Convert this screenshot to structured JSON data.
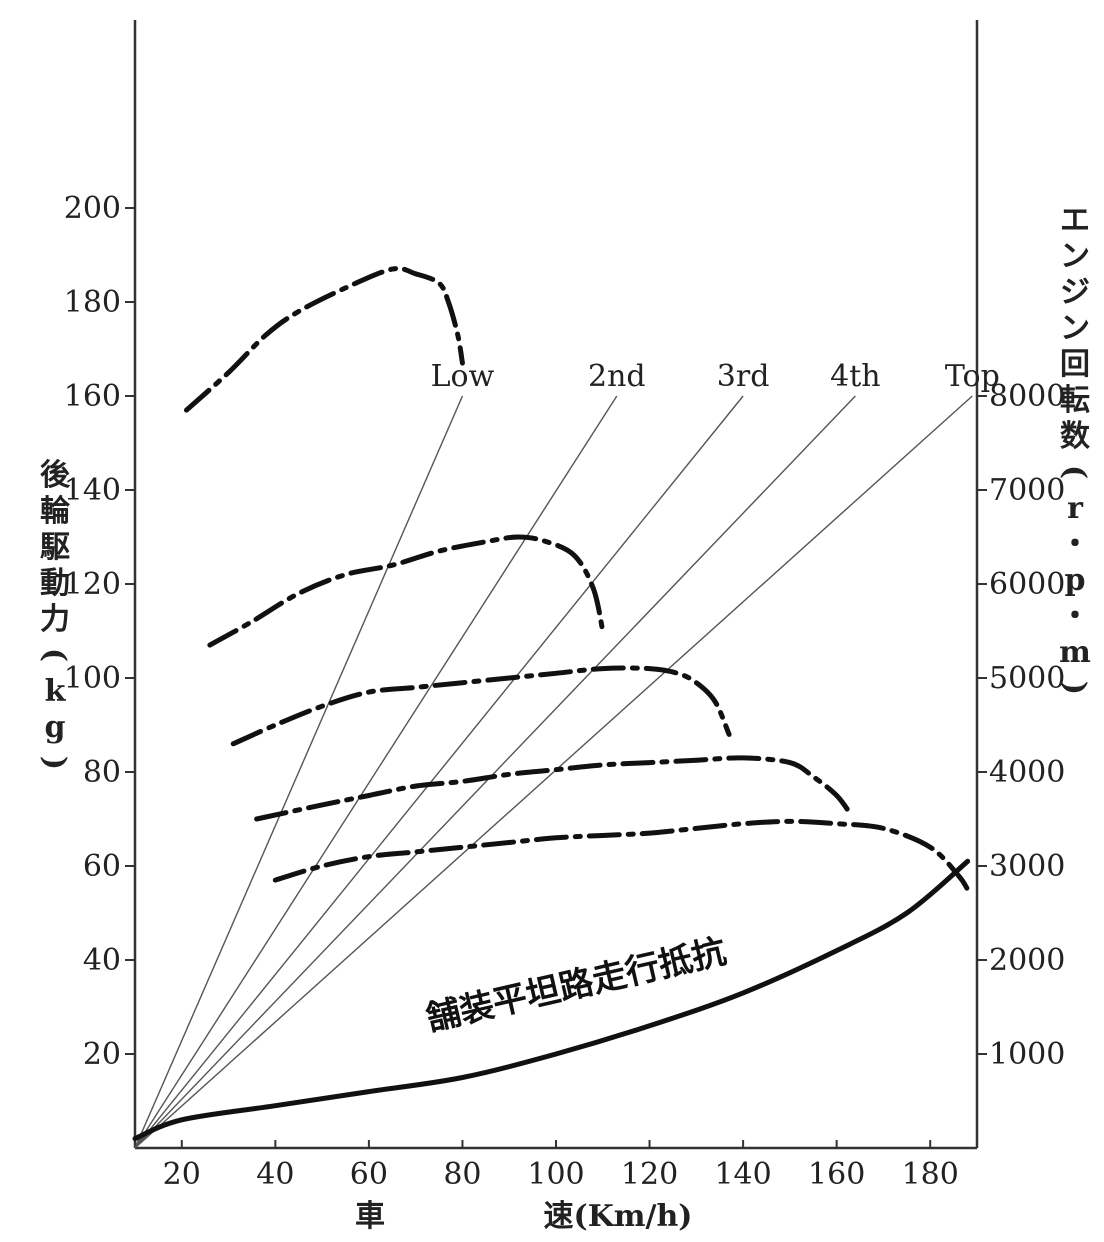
{
  "chart_data": {
    "type": "line",
    "xlabel_chars": [
      "車",
      "速(Km/h)"
    ],
    "ylabel_left": "後輪駆動力(kg)",
    "ylabel_right": "エンジン回転数(r・p・m)",
    "xlim": [
      10,
      190
    ],
    "ylim_left": [
      0,
      240
    ],
    "ylim_right": [
      0,
      12000
    ],
    "x_ticks": [
      20,
      40,
      60,
      80,
      100,
      120,
      140,
      160,
      180
    ],
    "y_left_ticks": [
      20,
      40,
      60,
      80,
      100,
      120,
      140,
      160,
      180,
      200
    ],
    "y_right_ticks": [
      1000,
      2000,
      3000,
      4000,
      5000,
      6000,
      7000,
      8000
    ],
    "gear_lines": [
      {
        "name": "Low",
        "x": [
          10,
          80
        ],
        "y": [
          0,
          8000
        ]
      },
      {
        "name": "2nd",
        "x": [
          10,
          113
        ],
        "y": [
          0,
          8000
        ]
      },
      {
        "name": "3rd",
        "x": [
          10,
          140
        ],
        "y": [
          0,
          8000
        ]
      },
      {
        "name": "4th",
        "x": [
          10,
          164
        ],
        "y": [
          0,
          8000
        ]
      },
      {
        "name": "Top",
        "x": [
          10,
          189
        ],
        "y": [
          0,
          8000
        ]
      }
    ],
    "driving_force_curves": [
      {
        "gear": "Low",
        "x": [
          21,
          30,
          38,
          45,
          55,
          65,
          70,
          75,
          77,
          79,
          80
        ],
        "y": [
          157,
          165,
          173,
          178,
          183,
          187,
          186,
          184,
          180,
          173,
          167
        ]
      },
      {
        "gear": "2nd",
        "x": [
          26,
          35,
          45,
          55,
          65,
          75,
          85,
          92,
          98,
          104,
          108,
          110
        ],
        "y": [
          107,
          112,
          118,
          122,
          124,
          127,
          129,
          130,
          129,
          126,
          119,
          110
        ]
      },
      {
        "gear": "3rd",
        "x": [
          31,
          40,
          50,
          60,
          70,
          80,
          90,
          100,
          110,
          120,
          126,
          130,
          134,
          137
        ],
        "y": [
          86,
          90,
          94,
          97,
          98,
          99,
          100,
          101,
          102,
          102,
          101,
          99,
          95,
          88
        ]
      },
      {
        "gear": "4th",
        "x": [
          36,
          50,
          60,
          70,
          80,
          90,
          100,
          110,
          120,
          130,
          140,
          150,
          155,
          160,
          163
        ],
        "y": [
          70,
          73,
          75,
          77,
          78,
          79.5,
          80.5,
          81.5,
          82,
          82.5,
          83,
          82,
          79,
          75,
          71
        ]
      },
      {
        "gear": "Top",
        "x": [
          40,
          50,
          60,
          70,
          80,
          90,
          100,
          110,
          120,
          130,
          140,
          150,
          160,
          170,
          180,
          186,
          188
        ],
        "y": [
          57,
          60,
          62,
          63,
          64,
          65,
          66,
          66.5,
          67,
          68,
          69,
          69.5,
          69,
          68,
          64,
          58,
          55
        ]
      }
    ],
    "resistance_curve": {
      "label": "舗装平坦路走行抵抗",
      "x": [
        10,
        20,
        40,
        60,
        80,
        100,
        120,
        140,
        160,
        175,
        188
      ],
      "y": [
        2,
        6,
        9,
        12,
        15,
        20,
        26,
        33,
        42,
        50,
        61
      ]
    }
  }
}
